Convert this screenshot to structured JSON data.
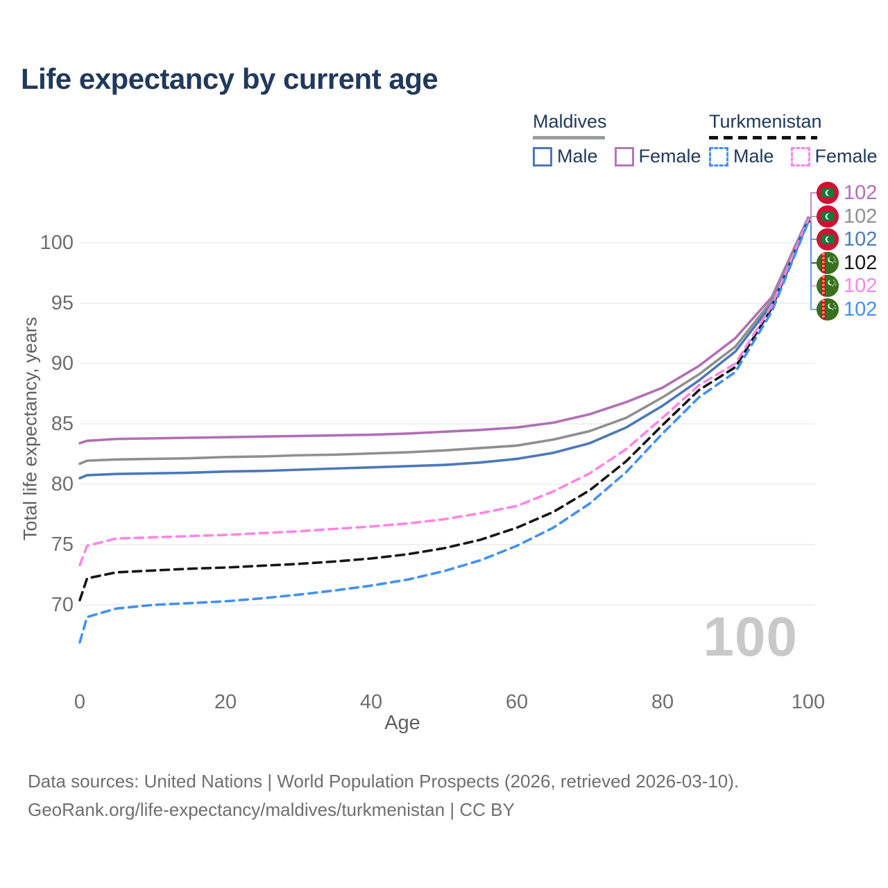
{
  "title": "Life expectancy by current age",
  "legend": {
    "groups": [
      {
        "name": "Maldives",
        "line_style": "solid",
        "underline_color": "#9a9ca0",
        "items": [
          {
            "label": "Male",
            "color": "#4c78b8",
            "dashed": false
          },
          {
            "label": "Female",
            "color": "#b478b6",
            "dashed": false
          }
        ]
      },
      {
        "name": "Turkmenistan",
        "line_style": "dashed",
        "underline_color": "#111111",
        "items": [
          {
            "label": "Male",
            "color": "#4190f4",
            "dashed": true
          },
          {
            "label": "Female",
            "color": "#ff85e4",
            "dashed": true
          }
        ]
      }
    ]
  },
  "chart_data": {
    "type": "line",
    "title": "Life expectancy by current age",
    "xlabel": "Age",
    "ylabel": "Total life expectancy, years",
    "xlim": [
      0,
      100
    ],
    "ylim": [
      66.5,
      103
    ],
    "xticks": [
      0,
      20,
      40,
      60,
      80,
      100
    ],
    "yticks": [
      70,
      75,
      80,
      85,
      90,
      95,
      100
    ],
    "grid": "horizontal",
    "legend_position": "top-right",
    "x": [
      0,
      1,
      5,
      10,
      15,
      20,
      25,
      30,
      35,
      40,
      45,
      50,
      55,
      60,
      65,
      70,
      75,
      80,
      85,
      90,
      95,
      100
    ],
    "series": [
      {
        "name": "Maldives Female",
        "country": "Maldives",
        "sex": "Female",
        "color": "#b06fb5",
        "dash": "solid",
        "flag": "maldives",
        "end_label": "102",
        "values": [
          83.4,
          83.6,
          83.75,
          83.8,
          83.85,
          83.9,
          83.95,
          84.0,
          84.05,
          84.1,
          84.2,
          84.35,
          84.5,
          84.7,
          85.1,
          85.8,
          86.8,
          88.0,
          89.8,
          92.1,
          95.5,
          102.1
        ]
      },
      {
        "name": "Maldives Both sexes",
        "country": "Maldives",
        "sex": "Both",
        "color": "#8f8f8f",
        "dash": "solid",
        "flag": "maldives",
        "end_label": "102",
        "values": [
          81.7,
          81.95,
          82.05,
          82.1,
          82.15,
          82.25,
          82.3,
          82.4,
          82.45,
          82.55,
          82.65,
          82.8,
          83.0,
          83.2,
          83.7,
          84.4,
          85.5,
          87.2,
          89.1,
          91.4,
          95.2,
          102.0
        ]
      },
      {
        "name": "Maldives Male",
        "country": "Maldives",
        "sex": "Male",
        "color": "#4c78b8",
        "dash": "solid",
        "flag": "maldives",
        "end_label": "102",
        "values": [
          80.5,
          80.75,
          80.85,
          80.9,
          80.95,
          81.05,
          81.1,
          81.2,
          81.3,
          81.4,
          81.5,
          81.6,
          81.8,
          82.1,
          82.6,
          83.4,
          84.7,
          86.5,
          88.6,
          91.0,
          94.9,
          101.9
        ]
      },
      {
        "name": "Turkmenistan Both sexes",
        "country": "Turkmenistan",
        "sex": "Both",
        "color": "#161616",
        "dash": "dashed",
        "flag": "turkmenistan",
        "end_label": "102",
        "values": [
          70.4,
          72.2,
          72.7,
          72.85,
          73.0,
          73.1,
          73.25,
          73.4,
          73.6,
          73.85,
          74.2,
          74.7,
          75.4,
          76.4,
          77.7,
          79.5,
          81.9,
          84.9,
          87.8,
          89.7,
          94.6,
          101.8
        ]
      },
      {
        "name": "Turkmenistan Female",
        "country": "Turkmenistan",
        "sex": "Female",
        "color": "#ff85e4",
        "dash": "dashed",
        "flag": "turkmenistan",
        "end_label": "102",
        "values": [
          73.3,
          74.9,
          75.5,
          75.6,
          75.7,
          75.8,
          75.95,
          76.1,
          76.3,
          76.5,
          76.75,
          77.1,
          77.6,
          78.2,
          79.4,
          80.9,
          82.9,
          85.5,
          88.2,
          90.0,
          94.8,
          101.9
        ]
      },
      {
        "name": "Turkmenistan Male",
        "country": "Turkmenistan",
        "sex": "Male",
        "color": "#4190f4",
        "dash": "dashed",
        "flag": "turkmenistan",
        "end_label": "102",
        "values": [
          66.9,
          69.0,
          69.7,
          70.0,
          70.15,
          70.3,
          70.55,
          70.85,
          71.2,
          71.6,
          72.1,
          72.8,
          73.7,
          74.9,
          76.4,
          78.4,
          81.0,
          84.2,
          87.2,
          89.3,
          94.3,
          101.7
        ]
      }
    ]
  },
  "watermark": "100",
  "footer": {
    "line1": "Data sources: United Nations | World Population Prospects (2026, retrieved 2026-03-10).",
    "line2": "GeoRank.org/life-expectancy/maldives/turkmenistan | CC BY"
  }
}
